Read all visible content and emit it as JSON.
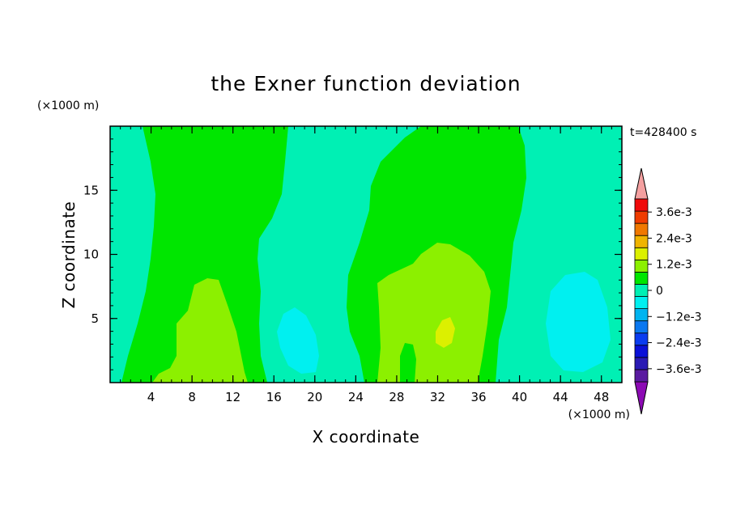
{
  "chart_data": {
    "type": "heatmap",
    "title": "the Exner function deviation",
    "time_label": "t=428400 s",
    "xlabel": "X coordinate",
    "ylabel": "Z coordinate",
    "x_unit": "(×1000 m)",
    "y_unit": "(×1000 m)",
    "xlim": [
      0,
      50
    ],
    "ylim": [
      0,
      20
    ],
    "x_ticks": [
      4,
      8,
      12,
      16,
      20,
      24,
      28,
      32,
      36,
      40,
      44,
      48
    ],
    "y_ticks": [
      5,
      10,
      15
    ],
    "colorbar": {
      "levels": [
        -0.0042,
        -0.0036,
        -0.003,
        -0.0024,
        -0.0018,
        -0.0012,
        -0.0006,
        0,
        0.0006,
        0.0012,
        0.0018,
        0.0024,
        0.003,
        0.0036,
        0.0042
      ],
      "labels": [
        {
          "value": 0.0036,
          "text": "3.6e-3"
        },
        {
          "value": 0.0024,
          "text": "2.4e-3"
        },
        {
          "value": 0.0012,
          "text": "1.2e-3"
        },
        {
          "value": 0,
          "text": "0"
        },
        {
          "value": -0.0012,
          "text": "−1.2e-3"
        },
        {
          "value": -0.0024,
          "text": "−2.4e-3"
        },
        {
          "value": -0.0036,
          "text": "−3.6e-3"
        }
      ],
      "colors": [
        "#5a1aa0",
        "#2a1ab4",
        "#0a10d8",
        "#0a3cf0",
        "#0a78f0",
        "#00b4f0",
        "#00f0f0",
        "#00f0b4",
        "#00e600",
        "#8cf000",
        "#dcf000",
        "#f0b400",
        "#f07800",
        "#f03c00",
        "#f00a0a"
      ],
      "over_color": "#f4a0a0",
      "under_color": "#8c0ab4"
    },
    "regions": [
      {
        "level": "0 to 6e-4",
        "color": "#00e600",
        "description": "broad positive band, left column x≈2–14"
      },
      {
        "level": "0 to 6e-4",
        "color": "#00e600",
        "description": "positive band x≈25–38"
      },
      {
        "level": "6e-4 to 1.2e-3",
        "color": "#8cf000",
        "description": "lobe near x≈8–13, z≈0–8"
      },
      {
        "level": "6e-4 to 1.2e-3",
        "color": "#8cf000",
        "description": "lobe near x≈26–37, z≈0–11"
      },
      {
        "level": "1.2e-3 to 1.8e-3",
        "color": "#dcf000",
        "description": "small cell near x≈32, z≈4–5"
      },
      {
        "level": "-6e-4 to 0",
        "color": "#00f0b4",
        "description": "background slightly negative"
      },
      {
        "level": "-1.2e-3 to -6e-4",
        "color": "#00f0f0",
        "description": "cell near x≈17–20, z≈0–7"
      },
      {
        "level": "-1.2e-3 to -6e-4",
        "color": "#00f0f0",
        "description": "cell near x≈42–48, z≈0–11"
      }
    ]
  }
}
